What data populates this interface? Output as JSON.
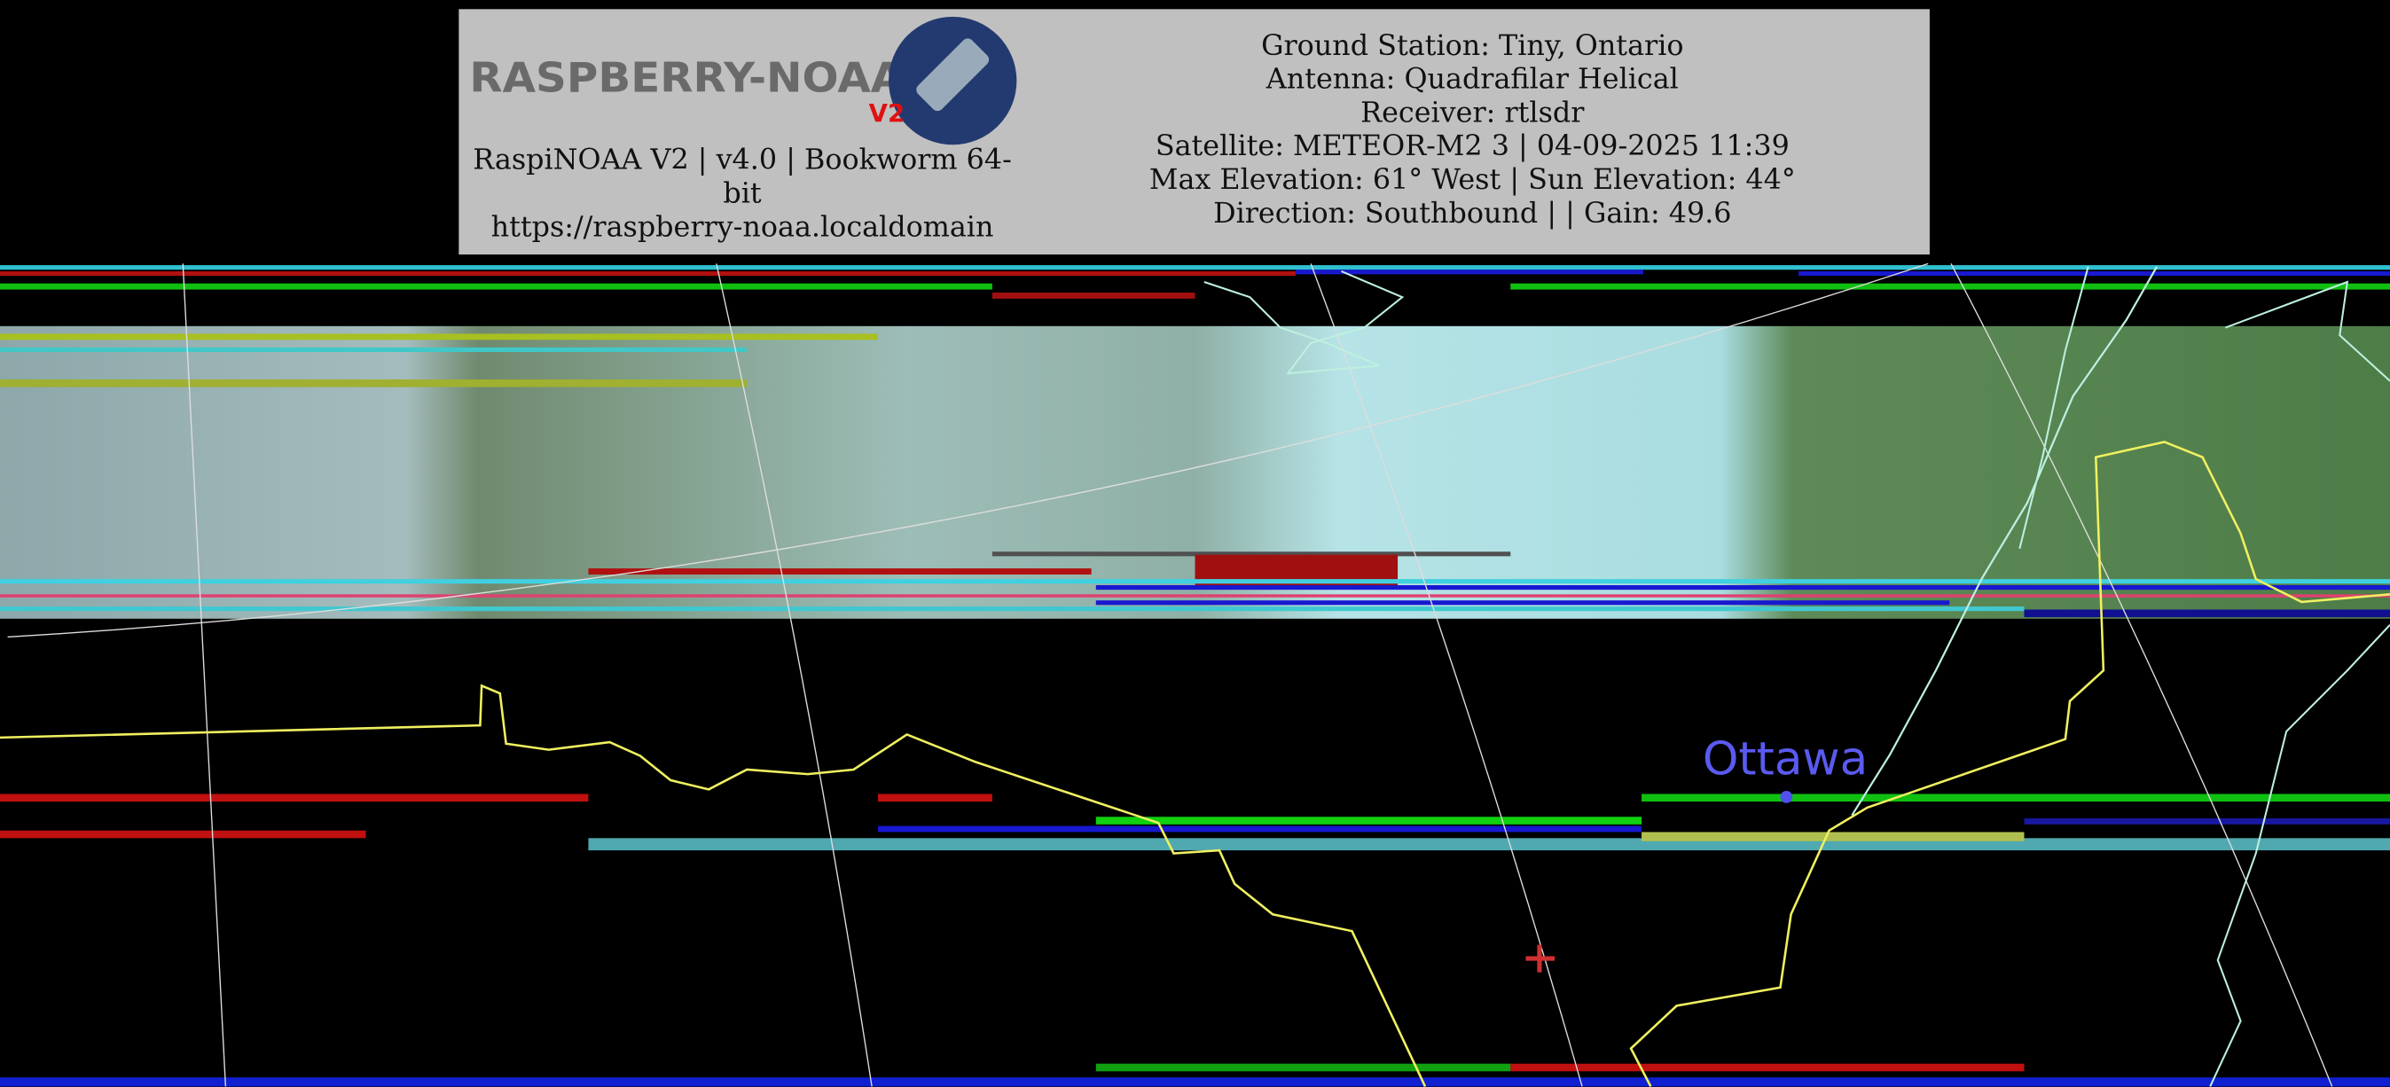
{
  "header": {
    "logo": "RASPBERRY-NOAA",
    "logo_version": "V2",
    "system_lines": [
      "RaspiNOAA V2 | v4.0 | Bookworm 64-",
      "bit",
      "https://raspberry-noaa.localdomain"
    ],
    "pass_lines": [
      "Ground Station: Tiny, Ontario",
      "Antenna: Quadrafilar Helical",
      "Receiver: rtlsdr",
      "Satellite: METEOR-M2 3 | 04-09-2025 11:39",
      "Max Elevation: 61° West | Sun Elevation: 44°",
      "Direction: Southbound | | Gain: 49.6"
    ]
  },
  "map": {
    "city": "Ottawa"
  }
}
